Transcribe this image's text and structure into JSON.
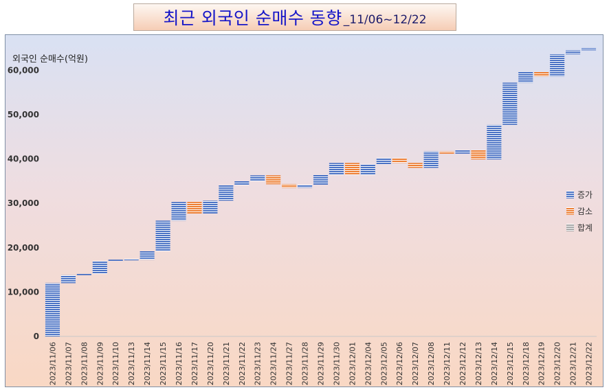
{
  "header": {
    "title_main": "최근 외국인 순매수 동향",
    "title_sub": "_11/06~12/22"
  },
  "colors": {
    "increase": "#4a72c4",
    "decrease": "#ed7d31",
    "total": "#a5a5a5"
  },
  "chart_data": {
    "type": "waterfall",
    "title": "최근 외국인 순매수 동향_11/06~12/22",
    "ylabel": "외국인 순매수(억원)",
    "ylim": [
      0,
      65000
    ],
    "yticks": [
      "0",
      "10,000",
      "20,000",
      "30,000",
      "40,000",
      "50,000",
      "60,000"
    ],
    "grid": false,
    "legend_position": "right",
    "legend": [
      {
        "label": "증가",
        "kind": "increase"
      },
      {
        "label": "감소",
        "kind": "decrease"
      },
      {
        "label": "합계",
        "kind": "total"
      }
    ],
    "categories": [
      "2023/11/06",
      "2023/11/07",
      "2023/11/08",
      "2023/11/09",
      "2023/11/10",
      "2023/11/13",
      "2023/11/14",
      "2023/11/15",
      "2023/11/16",
      "2023/11/17",
      "2023/11/20",
      "2023/11/21",
      "2023/11/22",
      "2023/11/23",
      "2023/11/24",
      "2023/11/27",
      "2023/11/28",
      "2023/11/29",
      "2023/11/30",
      "2023/12/01",
      "2023/12/04",
      "2023/12/05",
      "2023/12/06",
      "2023/12/07",
      "2023/12/08",
      "2023/12/11",
      "2023/12/12",
      "2023/12/13",
      "2023/12/14",
      "2023/12/15",
      "2023/12/18",
      "2023/12/19",
      "2023/12/20",
      "2023/12/21",
      "2023/12/22"
    ],
    "values": [
      12000,
      1800,
      300,
      2900,
      300,
      0,
      1900,
      6900,
      4200,
      -2600,
      2900,
      3500,
      900,
      1300,
      -2000,
      -800,
      700,
      2200,
      2700,
      -2700,
      2400,
      1400,
      -1100,
      -1100,
      3700,
      -500,
      800,
      -2100,
      7800,
      9500,
      2400,
      -1000,
      5000,
      900,
      500
    ]
  }
}
